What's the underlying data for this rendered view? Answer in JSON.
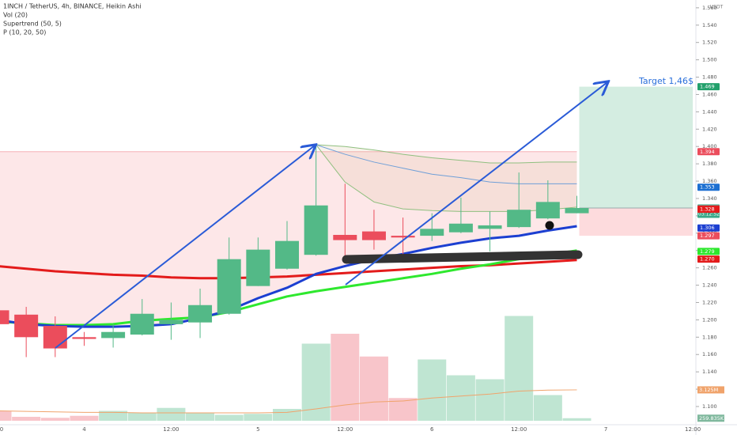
{
  "chart_data": {
    "type": "candlestick",
    "title": "1INCH / TetherUS, 4h, BINANCE, Heikin Ashi",
    "legend": [
      "Vol (20)",
      "Supertrend (50, 5)",
      "P (10, 20, 50)"
    ],
    "currency": "USDT",
    "annotation": "Target 1,46$",
    "categories": [
      "0",
      null,
      null,
      "4",
      null,
      null,
      "12:00",
      null,
      null,
      "5",
      null,
      null,
      "12:00",
      null,
      null,
      "6",
      null,
      null,
      "12:00",
      null,
      null,
      "7",
      null,
      null,
      "12:00"
    ],
    "ylim": [
      1.079,
      1.569
    ],
    "yticks": [
      {
        "value": 1.1,
        "label": "1.100"
      },
      {
        "value": 1.12,
        "label": "1.120"
      },
      {
        "value": 1.14,
        "label": "1.140"
      },
      {
        "value": 1.16,
        "label": "1.160"
      },
      {
        "value": 1.18,
        "label": "1.180"
      },
      {
        "value": 1.2,
        "label": "1.200"
      },
      {
        "value": 1.22,
        "label": "1.220"
      },
      {
        "value": 1.24,
        "label": "1.240"
      },
      {
        "value": 1.26,
        "label": "1.260"
      },
      {
        "value": 1.28,
        "label": "1.280"
      },
      {
        "value": 1.3,
        "label": "1.300"
      },
      {
        "value": 1.32,
        "label": "1.320"
      },
      {
        "value": 1.34,
        "label": "1.340"
      },
      {
        "value": 1.36,
        "label": "1.360"
      },
      {
        "value": 1.38,
        "label": "1.380"
      },
      {
        "value": 1.4,
        "label": "1.400"
      },
      {
        "value": 1.42,
        "label": "1.420"
      },
      {
        "value": 1.44,
        "label": "1.440"
      },
      {
        "value": 1.46,
        "label": "1.460"
      },
      {
        "value": 1.48,
        "label": "1.480"
      },
      {
        "value": 1.5,
        "label": "1.500"
      },
      {
        "value": 1.52,
        "label": "1.520"
      },
      {
        "value": 1.54,
        "label": "1.540"
      },
      {
        "value": 1.56,
        "label": "1.560"
      }
    ],
    "ohlc": {
      "up_color": "#53b987",
      "down_color": "#eb4d5c",
      "open": [
        1.211,
        1.206,
        1.193,
        1.18,
        1.179,
        1.183,
        1.195,
        1.197,
        1.207,
        1.239,
        1.259,
        1.275,
        1.298,
        1.302,
        1.297,
        1.297,
        1.301,
        1.305,
        1.307,
        1.317,
        1.323,
        null,
        null,
        null,
        null
      ],
      "close": [
        1.195,
        1.18,
        1.167,
        1.178,
        1.186,
        1.207,
        1.2,
        1.217,
        1.27,
        1.281,
        1.291,
        1.332,
        1.292,
        1.292,
        1.295,
        1.305,
        1.311,
        1.309,
        1.327,
        1.336,
        1.329,
        null,
        null,
        null,
        null
      ],
      "high": [
        1.215,
        1.215,
        1.204,
        1.186,
        1.195,
        1.224,
        1.22,
        1.236,
        1.295,
        1.295,
        1.314,
        1.402,
        1.357,
        1.327,
        1.318,
        1.323,
        1.341,
        1.325,
        1.37,
        1.361,
        1.343,
        null,
        null,
        null,
        null
      ],
      "low": [
        1.19,
        1.157,
        1.157,
        1.17,
        1.168,
        1.182,
        1.177,
        1.179,
        1.206,
        1.239,
        1.258,
        1.274,
        1.268,
        1.281,
        1.273,
        1.291,
        1.3,
        1.279,
        1.306,
        1.316,
        1.323,
        null,
        null,
        null,
        null
      ]
    },
    "volume": {
      "up_color": "#a9dcc3",
      "down_color": "#f5b1b8",
      "values": [
        1000000,
        400000,
        300000,
        500000,
        1000000,
        800000,
        1300000,
        800000,
        600000,
        700000,
        1200000,
        7800000,
        8800000,
        6500000,
        2300000,
        6200000,
        4600000,
        4200000,
        10600000,
        2600000,
        259835,
        null,
        null,
        null,
        null
      ],
      "value_labels": [
        null,
        null,
        null,
        null,
        null,
        null,
        null,
        null,
        null,
        null,
        null,
        null,
        null,
        null,
        null,
        null,
        null,
        null,
        null,
        null,
        "259.835K",
        null,
        null,
        null,
        null
      ],
      "ma_color": "#f0a36b",
      "ma": [
        1000000,
        950000,
        900000,
        850000,
        850000,
        800000,
        800000,
        800000,
        800000,
        800000,
        850000,
        1200000,
        1600000,
        1900000,
        2000000,
        2300000,
        2500000,
        2700000,
        3000000,
        3100000,
        3125000,
        null,
        null,
        null,
        null
      ],
      "ma_labels": [
        null,
        null,
        null,
        null,
        null,
        null,
        null,
        null,
        null,
        null,
        null,
        null,
        null,
        null,
        null,
        null,
        null,
        null,
        null,
        null,
        "3.125M",
        null,
        null,
        null,
        null
      ]
    },
    "lines": [
      {
        "color": "#e31b1b",
        "width": 3,
        "values": [
          1.262,
          1.259,
          1.256,
          1.254,
          1.252,
          1.251,
          1.249,
          1.248,
          1.248,
          1.249,
          1.25,
          1.252,
          1.254,
          1.256,
          1.258,
          1.26,
          1.262,
          1.263,
          1.265,
          1.267,
          1.269,
          null,
          null,
          null,
          null
        ]
      },
      {
        "color": "#2ee82e",
        "width": 3,
        "values": [
          1.198,
          1.196,
          1.194,
          1.194,
          1.195,
          1.199,
          1.201,
          1.203,
          1.209,
          1.218,
          1.227,
          1.233,
          1.238,
          1.243,
          1.248,
          1.253,
          1.259,
          1.264,
          1.27,
          1.275,
          1.28,
          null,
          null,
          null,
          null
        ]
      },
      {
        "color": "#1c3fd1",
        "width": 3,
        "values": [
          1.2,
          1.195,
          1.193,
          1.192,
          1.192,
          1.193,
          1.195,
          1.202,
          1.211,
          1.225,
          1.237,
          1.253,
          1.262,
          1.27,
          1.276,
          1.283,
          1.289,
          1.294,
          1.297,
          1.303,
          1.308,
          null,
          null,
          null,
          null
        ]
      },
      {
        "color": "#8fbf7f",
        "width": 1,
        "values": [
          null,
          null,
          null,
          null,
          null,
          null,
          null,
          null,
          null,
          null,
          null,
          1.402,
          1.4,
          1.396,
          1.391,
          1.387,
          1.384,
          1.381,
          1.381,
          1.382,
          1.382,
          null,
          null,
          null,
          null
        ]
      },
      {
        "color": "#6f9fd8",
        "width": 1,
        "values": [
          null,
          null,
          null,
          null,
          null,
          null,
          null,
          null,
          null,
          null,
          null,
          1.402,
          1.391,
          1.382,
          1.375,
          1.368,
          1.364,
          1.359,
          1.357,
          1.357,
          1.357,
          null,
          null,
          null,
          null
        ]
      },
      {
        "color": "#8fbf7f",
        "width": 1,
        "values": [
          null,
          null,
          null,
          null,
          null,
          null,
          null,
          null,
          null,
          null,
          null,
          1.402,
          1.359,
          1.336,
          1.328,
          1.326,
          1.325,
          1.325,
          1.325,
          1.327,
          1.33,
          null,
          null,
          null,
          null
        ]
      }
    ],
    "price_labels": [
      {
        "value": 1.469,
        "label": "1.469",
        "color": "#22a06b"
      },
      {
        "value": 1.394,
        "label": "1.394",
        "color": "#eb4d5c"
      },
      {
        "value": 1.353,
        "label": "1.353",
        "color": "#1c6fd1"
      },
      {
        "value": 1.329,
        "label": "1.329",
        "color": "#3aa889",
        "countdown": "03:12:52"
      },
      {
        "value": 1.328,
        "label": "1.328",
        "color": "#eb4d5c"
      },
      {
        "value": 1.3275,
        "label": "1.328",
        "color": "#e31b1b"
      },
      {
        "value": 1.306,
        "label": "1.306",
        "color": "#1c3fd1"
      },
      {
        "value": 1.297,
        "label": "1.297",
        "color": "#eb4d5c"
      },
      {
        "value": 1.279,
        "label": "1.279",
        "color": "#2ee82e"
      },
      {
        "value": 1.27,
        "label": "1.270",
        "color": "#e31b1b"
      }
    ]
  }
}
